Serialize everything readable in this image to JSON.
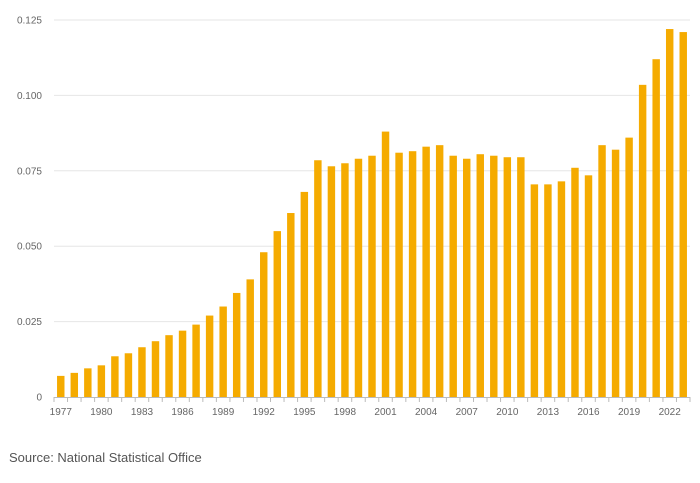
{
  "chart_data": {
    "type": "bar",
    "title": "",
    "xlabel": "",
    "ylabel": "",
    "ylim": [
      0,
      0.125
    ],
    "yticks": [
      0,
      0.025,
      0.05,
      0.075,
      0.1,
      0.125
    ],
    "ytick_labels": [
      "0",
      "0.025",
      "0.050",
      "0.075",
      "0.100",
      "0.125"
    ],
    "categories": [
      1977,
      1978,
      1979,
      1980,
      1981,
      1982,
      1983,
      1984,
      1985,
      1986,
      1987,
      1988,
      1989,
      1990,
      1991,
      1992,
      1993,
      1994,
      1995,
      1996,
      1997,
      1998,
      1999,
      2000,
      2001,
      2002,
      2003,
      2004,
      2005,
      2006,
      2007,
      2008,
      2009,
      2010,
      2011,
      2012,
      2013,
      2014,
      2015,
      2016,
      2017,
      2018,
      2019,
      2020,
      2021,
      2022,
      2023
    ],
    "xtick_labels": [
      "1977",
      "1980",
      "1983",
      "1986",
      "1989",
      "1992",
      "1995",
      "1998",
      "2001",
      "2004",
      "2007",
      "2010",
      "2013",
      "2016",
      "2019",
      "2022"
    ],
    "values": [
      0.007,
      0.008,
      0.0095,
      0.0105,
      0.0135,
      0.0145,
      0.0165,
      0.0185,
      0.0205,
      0.022,
      0.024,
      0.027,
      0.03,
      0.0345,
      0.039,
      0.048,
      0.055,
      0.061,
      0.068,
      0.0785,
      0.0765,
      0.0775,
      0.079,
      0.08,
      0.088,
      0.081,
      0.0815,
      0.083,
      0.0835,
      0.08,
      0.079,
      0.0805,
      0.08,
      0.0795,
      0.0795,
      0.0705,
      0.0705,
      0.0715,
      0.076,
      0.0735,
      0.0835,
      0.082,
      0.086,
      0.1035,
      0.112,
      0.122,
      0.121
    ],
    "colors": {
      "bar": "#f5ab00",
      "grid": "#e6e6e6",
      "axis": "#bbbbbb",
      "text": "#666666"
    },
    "grid": true
  },
  "footer": {
    "source": "Source: National Statistical Office"
  }
}
